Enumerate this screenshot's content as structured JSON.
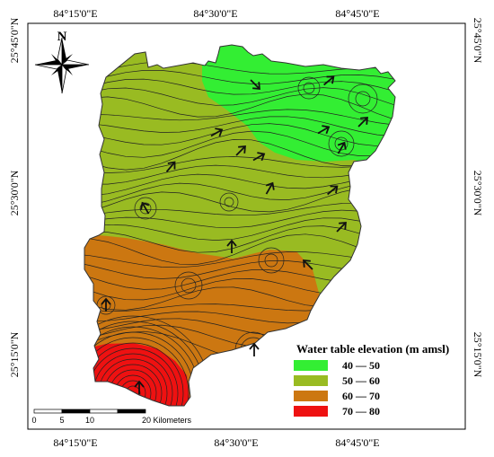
{
  "map": {
    "north_label": "N",
    "top_coords": [
      "84°15'0\"E",
      "84°30'0\"E",
      "84°45'0\"E"
    ],
    "bottom_coords": [
      "84°15'0\"E",
      "84°30'0\"E",
      "84°45'0\"E"
    ],
    "left_coords": [
      "25°45'0\"N",
      "25°30'0\"N",
      "25°15'0\"N"
    ],
    "right_coords": [
      "25°45'0\"N",
      "25°30'0\"N",
      "25°15'0\"N"
    ]
  },
  "legend": {
    "title": "Water table elevation (m amsl)",
    "items": [
      {
        "label": "40 — 50",
        "color": "#33ee33"
      },
      {
        "label": "50 — 60",
        "color": "#99bb22"
      },
      {
        "label": "60 — 70",
        "color": "#cc7711"
      },
      {
        "label": "70 — 80",
        "color": "#ee1111"
      }
    ]
  },
  "scale_bar": {
    "ticks": [
      "0",
      "5",
      "10",
      "20 Kilometers"
    ]
  },
  "colors": {
    "zone_40_50": "#33ee33",
    "zone_50_60": "#99bb22",
    "zone_60_70": "#cc7711",
    "zone_70_80": "#ee1111",
    "contour": "#222222"
  },
  "icons": [
    "north-arrow-icon",
    "flow-arrow-icon"
  ]
}
